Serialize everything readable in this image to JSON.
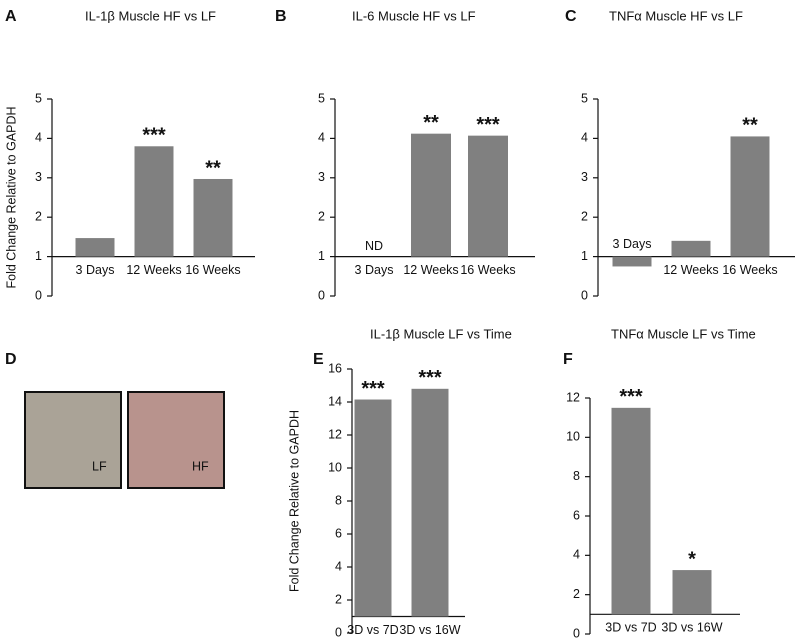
{
  "chart_data": [
    {
      "type": "bar",
      "panel_label": "A",
      "title": "IL-1β  Muscle HF vs LF",
      "y_label": "Fold Change Relative to GAPDH",
      "categories": [
        "3 Days",
        "12 Weeks",
        "16 Weeks"
      ],
      "values": [
        1.47,
        3.8,
        2.97
      ],
      "annotations": [
        null,
        "***",
        "**"
      ],
      "color": "#808080",
      "baseline": 1,
      "ylim": [
        0,
        5
      ],
      "yticks": [
        0,
        1,
        2,
        3,
        4,
        5
      ]
    },
    {
      "type": "bar",
      "panel_label": "B",
      "title": "IL-6  Muscle HF vs LF",
      "categories": [
        "3 Days",
        "12 Weeks",
        "16 Weeks"
      ],
      "values": [
        null,
        4.12,
        4.07
      ],
      "annotations": [
        "ND",
        "**",
        "***"
      ],
      "color": "#808080",
      "baseline": 1,
      "ylim": [
        0,
        5
      ],
      "yticks": [
        0,
        1,
        2,
        3,
        4,
        5
      ]
    },
    {
      "type": "bar",
      "panel_label": "C",
      "title": "TNFα  Muscle HF vs LF",
      "categories": [
        "3 Days",
        "12 Weeks",
        "16 Weeks"
      ],
      "values": [
        0.75,
        1.4,
        4.05
      ],
      "annotations": [
        null,
        null,
        "**"
      ],
      "color": "#808080",
      "baseline": 1,
      "ylim": [
        0,
        5
      ],
      "yticks": [
        0,
        1,
        2,
        3,
        4,
        5
      ]
    },
    {
      "type": "bar",
      "panel_label": "E",
      "title": "IL-1β  Muscle LF vs Time",
      "y_label": "Fold Change Relative to GAPDH",
      "categories": [
        "3D vs 7D",
        "3D vs 16W"
      ],
      "values": [
        14.15,
        14.8
      ],
      "annotations": [
        "***",
        "***"
      ],
      "color": "#808080",
      "baseline": 1,
      "ylim": [
        0,
        16
      ],
      "yticks": [
        0,
        2,
        4,
        6,
        8,
        10,
        12,
        14,
        16
      ]
    },
    {
      "type": "bar",
      "panel_label": "F",
      "title": "TNFα  Muscle LF vs Time",
      "categories": [
        "3D vs 7D",
        "3D vs 16W"
      ],
      "values": [
        11.5,
        3.25
      ],
      "annotations": [
        "***",
        "*"
      ],
      "color": "#808080",
      "baseline": 1,
      "ylim": [
        0,
        12
      ],
      "yticks": [
        0,
        2,
        4,
        6,
        8,
        10,
        12
      ]
    }
  ],
  "image_panel": {
    "panel_label": "D",
    "images": [
      {
        "label": "LF"
      },
      {
        "label": "HF"
      }
    ]
  }
}
